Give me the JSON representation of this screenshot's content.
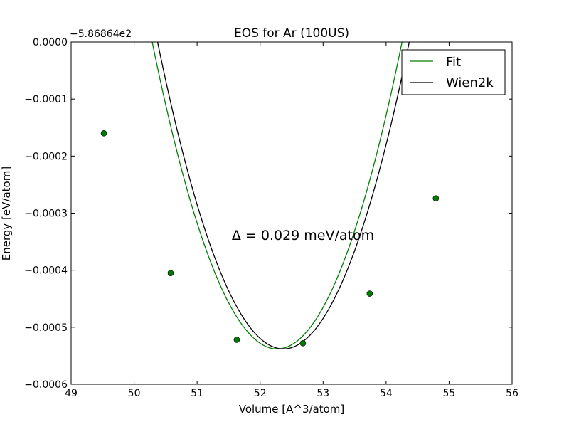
{
  "chart_data": {
    "type": "line",
    "title": "EOS for Ar (100US)",
    "xlabel": "Volume [A^3/atom]",
    "ylabel": "Energy [eV/atom]",
    "y_offset_label": "−5.86864e2",
    "y_offset": -586.864,
    "xlim": [
      49,
      56
    ],
    "ylim": [
      -0.0006,
      0.0
    ],
    "x_ticks": [
      49,
      50,
      51,
      52,
      53,
      54,
      55,
      56
    ],
    "x_tick_labels": [
      "49",
      "50",
      "51",
      "52",
      "53",
      "54",
      "55",
      "56"
    ],
    "y_ticks": [
      -0.0006,
      -0.0005,
      -0.0004,
      -0.0003,
      -0.0002,
      -0.0001,
      0.0
    ],
    "y_tick_labels": [
      "−0.0006",
      "−0.0005",
      "−0.0004",
      "−0.0003",
      "−0.0002",
      "−0.0001",
      "0.0000"
    ],
    "grid": false,
    "legend_position": "top-right",
    "annotation": "Δ = 0.029 meV/atom",
    "colors": {
      "fit": "#008000",
      "wien2k": "#000000",
      "points": "#007a00"
    },
    "series": [
      {
        "name": "Fit",
        "kind": "line",
        "model": "parabola",
        "vmin": 52.27,
        "emin": -0.000538,
        "curvature": 0.0001368,
        "x_range": [
          49.52,
          56.0
        ]
      },
      {
        "name": "Wien2k",
        "kind": "line",
        "model": "parabola",
        "vmin": 52.37,
        "emin": -0.000538,
        "curvature": 0.0001348,
        "x_range": [
          49.52,
          56.0
        ]
      },
      {
        "kind": "points",
        "x": [
          49.52,
          50.58,
          51.63,
          52.68,
          53.74,
          54.79
        ],
        "y": [
          -0.00016,
          -0.000405,
          -0.000522,
          -0.000528,
          -0.000441,
          -0.000274
        ]
      }
    ]
  }
}
